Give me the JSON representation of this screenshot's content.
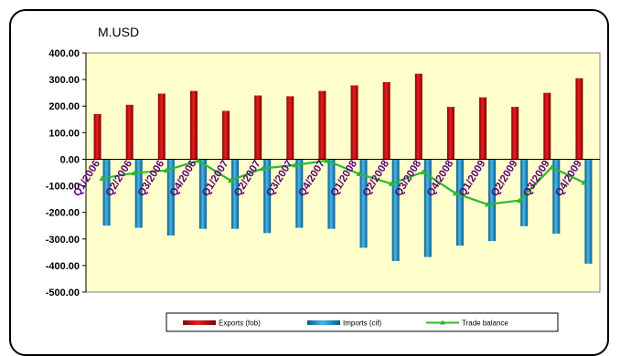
{
  "chart_data": {
    "type": "bar",
    "unit_label": "M.USD",
    "categories": [
      "Q1/2006",
      "Q2/2006",
      "Q3/2006",
      "Q4/2006",
      "Q1/2007",
      "Q2/2007",
      "Q3/2007",
      "Q4/2007",
      "Q1/2008",
      "Q2/2008",
      "Q3/2008",
      "Q4/2008",
      "Q1/2009",
      "Q2/2009",
      "Q3/2009",
      "Q4/2009"
    ],
    "series": [
      {
        "name": "Exports (fob)",
        "kind": "bar",
        "color": "#cc1010",
        "values": [
          170,
          205,
          247,
          257,
          182,
          240,
          237,
          257,
          278,
          290,
          322,
          197,
          233,
          197,
          250,
          305
        ]
      },
      {
        "name": "Imports (cif)",
        "kind": "bar",
        "color": "#2a9ad0",
        "values": [
          -250,
          -258,
          -287,
          -262,
          -262,
          -278,
          -258,
          -262,
          -333,
          -383,
          -368,
          -325,
          -308,
          -252,
          -280,
          -393
        ]
      },
      {
        "name": "Trade balance",
        "kind": "line",
        "color": "#2db82d",
        "values": [
          -72,
          -52,
          -42,
          -5,
          -80,
          -35,
          -22,
          -5,
          -55,
          -92,
          -48,
          -128,
          -170,
          -155,
          -30,
          -88
        ]
      }
    ],
    "ylim": [
      -500,
      400
    ],
    "yticks": [
      "400.00",
      "300.00",
      "200.00",
      "100.00",
      "0.00",
      "-100.00",
      "-200.00",
      "-300.00",
      "-400.00",
      "-500.00"
    ],
    "legend": "bottom",
    "grid": false
  }
}
